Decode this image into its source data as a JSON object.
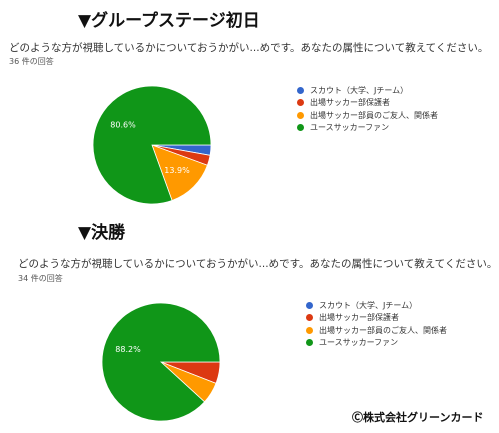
{
  "sections": [
    {
      "heading": "▼グループステージ初日",
      "question": "どのような方が視聴しているかについておうかがい...めです。あなたの属性について教えてください。",
      "count": "36 件の回答"
    },
    {
      "heading": "▼決勝",
      "question": "どのような方が視聴しているかについておうかがい...めです。あなたの属性について教えてください。",
      "count": "34 件の回答"
    }
  ],
  "chart_data": [
    {
      "type": "pie",
      "title": "",
      "categories": [
        "スカウト（大学、Jチーム）",
        "出場サッカー部保護者",
        "出場サッカー部員のご友人、関係者",
        "ユースサッカーファン"
      ],
      "values": [
        2.8,
        2.8,
        13.9,
        80.6
      ],
      "data_labels": [
        "",
        "",
        "13.9%",
        "80.6%"
      ],
      "colors": [
        "#3366cc",
        "#dc3912",
        "#ff9900",
        "#109618"
      ],
      "legend_position": "right"
    },
    {
      "type": "pie",
      "title": "",
      "categories": [
        "スカウト（大学、Jチーム）",
        "出場サッカー部保護者",
        "出場サッカー部員のご友人、関係者",
        "ユースサッカーファン"
      ],
      "values": [
        0,
        5.9,
        5.9,
        88.2
      ],
      "data_labels": [
        "",
        "",
        "",
        "88.2%"
      ],
      "colors": [
        "#3366cc",
        "#dc3912",
        "#ff9900",
        "#109618"
      ],
      "legend_position": "right"
    }
  ],
  "credit": "Ⓒ株式会社グリーンカード"
}
